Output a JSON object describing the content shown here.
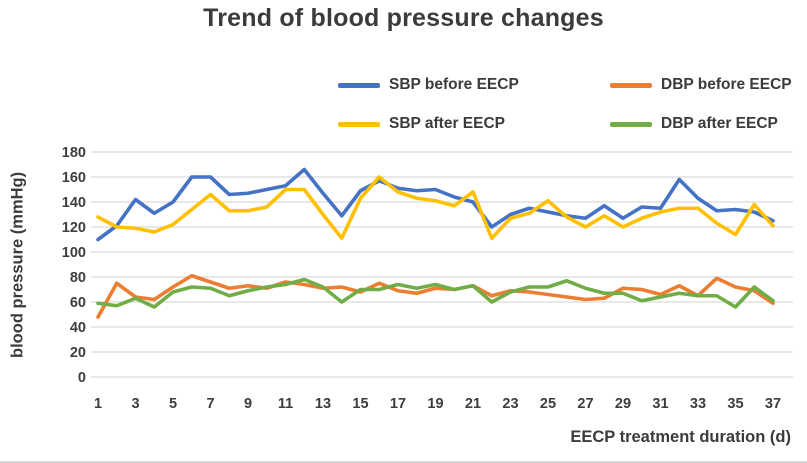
{
  "figure": {
    "title": "Trend of blood pressure changes",
    "x_axis_label": "EECP treatment duration (d)",
    "y_axis_label": "blood pressure (mmHg)"
  },
  "legend": {
    "items": [
      {
        "label": "SBP before EECP",
        "color": "#4472C4"
      },
      {
        "label": "DBP before EECP",
        "color": "#ED7D31"
      },
      {
        "label": "SBP after EECP",
        "color": "#FFC000"
      },
      {
        "label": "DBP after EECP",
        "color": "#70AD47"
      }
    ]
  },
  "axes": {
    "y_ticks": [
      "180",
      "160",
      "140",
      "120",
      "100",
      "80",
      "60",
      "40",
      "20",
      "0"
    ],
    "x_ticks": [
      "1",
      "3",
      "5",
      "7",
      "9",
      "11",
      "13",
      "15",
      "17",
      "19",
      "21",
      "23",
      "25",
      "27",
      "29",
      "31",
      "33",
      "35",
      "37"
    ]
  },
  "chart_data": {
    "type": "line",
    "title": "Trend of blood pressure changes",
    "xlabel": "EECP treatment duration (d)",
    "ylabel": "blood pressure (mmHg)",
    "ylim": [
      0,
      180
    ],
    "ytick_step": 20,
    "grid": "horizontal",
    "legend_position": "top-right-two-rows",
    "x": [
      1,
      2,
      3,
      4,
      5,
      6,
      7,
      8,
      9,
      10,
      11,
      12,
      13,
      14,
      15,
      16,
      17,
      18,
      19,
      20,
      21,
      22,
      23,
      24,
      25,
      26,
      27,
      28,
      29,
      30,
      31,
      32,
      33,
      34,
      35,
      36,
      37
    ],
    "series": [
      {
        "name": "SBP before EECP",
        "color": "#4472C4",
        "values": [
          110,
          121,
          142,
          131,
          140,
          160,
          160,
          146,
          147,
          150,
          153,
          166,
          147,
          129,
          149,
          157,
          151,
          149,
          150,
          144,
          140,
          120,
          130,
          135,
          132,
          129,
          127,
          137,
          127,
          136,
          135,
          158,
          143,
          133,
          134,
          132,
          125
        ]
      },
      {
        "name": "DBP before EECP",
        "color": "#ED7D31",
        "values": [
          48,
          75,
          64,
          62,
          72,
          81,
          76,
          71,
          73,
          71,
          76,
          74,
          71,
          72,
          68,
          75,
          69,
          67,
          71,
          70,
          73,
          65,
          69,
          68,
          66,
          64,
          62,
          63,
          71,
          70,
          66,
          73,
          65,
          79,
          72,
          69,
          59
        ]
      },
      {
        "name": "SBP after EECP",
        "color": "#FFC000",
        "values": [
          128,
          120,
          119,
          116,
          122,
          134,
          146,
          133,
          133,
          136,
          150,
          150,
          130,
          111,
          143,
          160,
          148,
          143,
          141,
          137,
          148,
          111,
          127,
          131,
          141,
          128,
          120,
          129,
          120,
          127,
          132,
          135,
          135,
          123,
          114,
          138,
          121
        ]
      },
      {
        "name": "DBP after EECP",
        "color": "#70AD47",
        "values": [
          59,
          57,
          63,
          56,
          68,
          72,
          71,
          65,
          69,
          72,
          74,
          78,
          72,
          60,
          70,
          70,
          74,
          71,
          74,
          70,
          73,
          60,
          68,
          72,
          72,
          77,
          71,
          67,
          67,
          61,
          64,
          67,
          65,
          65,
          56,
          72,
          61
        ]
      }
    ]
  }
}
